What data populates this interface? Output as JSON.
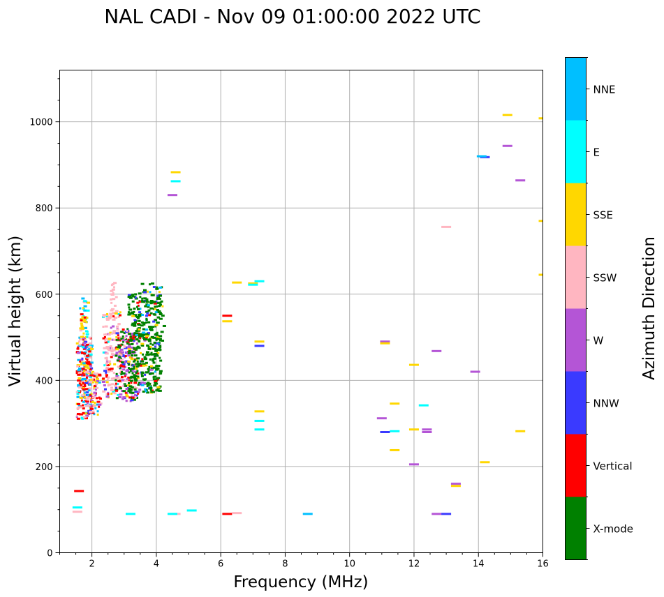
{
  "chart_data": {
    "type": "scatter",
    "title": "NAL CADI - Nov 09 01:00:00 2022 UTC",
    "xlabel": "Frequency (MHz)",
    "ylabel": "Virtual height (km)",
    "xlim": [
      1,
      16
    ],
    "ylim": [
      0,
      1120
    ],
    "xticks": [
      "2",
      "4",
      "6",
      "8",
      "10",
      "12",
      "14",
      "16"
    ],
    "yticks": [
      "0",
      "200",
      "400",
      "600",
      "800",
      "1000"
    ],
    "grid": true,
    "colorbar": {
      "label": "Azimuth Direction",
      "categories": [
        {
          "name": "X-mode",
          "color": "#008000"
        },
        {
          "name": "Vertical",
          "color": "#ff0000"
        },
        {
          "name": "NNW",
          "color": "#3a3aff"
        },
        {
          "name": "W",
          "color": "#b455d6"
        },
        {
          "name": "SSW",
          "color": "#ffb6c1"
        },
        {
          "name": "SSE",
          "color": "#ffd700"
        },
        {
          "name": "E",
          "color": "#00ffff"
        },
        {
          "name": "NNE",
          "color": "#00bfff"
        }
      ]
    },
    "segments": [
      {
        "f": 14.2,
        "h": 918,
        "dir": "NNW"
      },
      {
        "f": 14.1,
        "h": 920,
        "dir": "NNE"
      },
      {
        "f": 14.9,
        "h": 1016,
        "dir": "SSE"
      },
      {
        "f": 14.9,
        "h": 944,
        "dir": "W"
      },
      {
        "f": 15.3,
        "h": 864,
        "dir": "W"
      },
      {
        "f": 13.0,
        "h": 756,
        "dir": "SSW"
      },
      {
        "f": 13.9,
        "h": 420,
        "dir": "W"
      },
      {
        "f": 12.7,
        "h": 468,
        "dir": "W"
      },
      {
        "f": 12.0,
        "h": 436,
        "dir": "SSE"
      },
      {
        "f": 11.1,
        "h": 490,
        "dir": "W"
      },
      {
        "f": 11.1,
        "h": 486,
        "dir": "SSE"
      },
      {
        "f": 12.3,
        "h": 342,
        "dir": "E"
      },
      {
        "f": 11.4,
        "h": 346,
        "dir": "SSE"
      },
      {
        "f": 11.0,
        "h": 312,
        "dir": "W"
      },
      {
        "f": 11.1,
        "h": 280,
        "dir": "NNW"
      },
      {
        "f": 11.4,
        "h": 282,
        "dir": "E"
      },
      {
        "f": 12.4,
        "h": 286,
        "dir": "W"
      },
      {
        "f": 12.4,
        "h": 280,
        "dir": "W"
      },
      {
        "f": 12.0,
        "h": 286,
        "dir": "SSE"
      },
      {
        "f": 11.4,
        "h": 238,
        "dir": "SSE"
      },
      {
        "f": 12.0,
        "h": 205,
        "dir": "W"
      },
      {
        "f": 14.2,
        "h": 210,
        "dir": "SSE"
      },
      {
        "f": 15.3,
        "h": 282,
        "dir": "SSE"
      },
      {
        "f": 13.3,
        "h": 160,
        "dir": "W"
      },
      {
        "f": 13.3,
        "h": 155,
        "dir": "SSE"
      },
      {
        "f": 12.7,
        "h": 90,
        "dir": "W"
      },
      {
        "f": 13.0,
        "h": 90,
        "dir": "NNW"
      },
      {
        "f": 8.7,
        "h": 90,
        "dir": "NNE"
      },
      {
        "f": 7.2,
        "h": 630,
        "dir": "E"
      },
      {
        "f": 7.0,
        "h": 625,
        "dir": "SSE"
      },
      {
        "f": 7.0,
        "h": 622,
        "dir": "E"
      },
      {
        "f": 6.5,
        "h": 627,
        "dir": "SSE"
      },
      {
        "f": 6.2,
        "h": 550,
        "dir": "Vertical"
      },
      {
        "f": 6.2,
        "h": 537,
        "dir": "SSE"
      },
      {
        "f": 7.2,
        "h": 490,
        "dir": "SSE"
      },
      {
        "f": 7.2,
        "h": 480,
        "dir": "NNW"
      },
      {
        "f": 7.2,
        "h": 328,
        "dir": "SSE"
      },
      {
        "f": 7.2,
        "h": 306,
        "dir": "E"
      },
      {
        "f": 7.2,
        "h": 286,
        "dir": "E"
      },
      {
        "f": 6.2,
        "h": 90,
        "dir": "Vertical"
      },
      {
        "f": 6.5,
        "h": 92,
        "dir": "SSW"
      },
      {
        "f": 4.6,
        "h": 883,
        "dir": "SSE"
      },
      {
        "f": 4.6,
        "h": 862,
        "dir": "E"
      },
      {
        "f": 4.5,
        "h": 830,
        "dir": "W"
      },
      {
        "f": 4.6,
        "h": 90,
        "dir": "SSW"
      },
      {
        "f": 4.5,
        "h": 90,
        "dir": "E"
      },
      {
        "f": 5.1,
        "h": 98,
        "dir": "E"
      },
      {
        "f": 3.2,
        "h": 90,
        "dir": "E"
      },
      {
        "f": 16.0,
        "h": 1008,
        "dir": "SSE"
      },
      {
        "f": 16.0,
        "h": 770,
        "dir": "SSE"
      },
      {
        "f": 16.0,
        "h": 645,
        "dir": "SSE"
      },
      {
        "f": 1.6,
        "h": 143,
        "dir": "Vertical"
      },
      {
        "f": 1.55,
        "h": 105,
        "dir": "E"
      },
      {
        "f": 1.55,
        "h": 95,
        "dir": "SSW"
      }
    ]
  }
}
